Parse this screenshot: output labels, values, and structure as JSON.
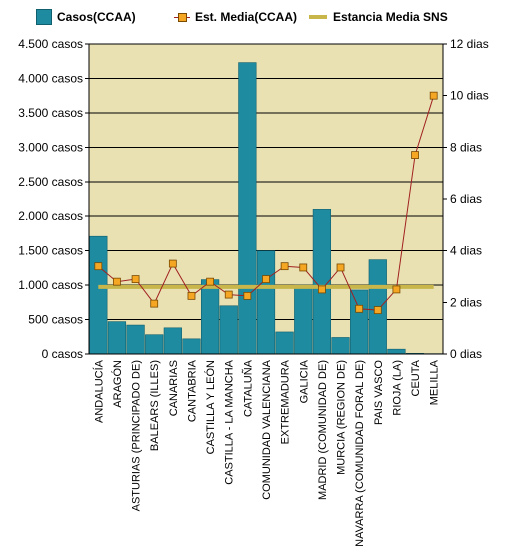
{
  "colors": {
    "plot_bg": "#eae1b3",
    "bar": "#1f8ba0",
    "bar_edge": "#0f5f6e",
    "line": "#a02020",
    "marker": "#f5a623",
    "marker_edge": "#7a4a00",
    "sns": "#c8b64a",
    "grid": "#000000"
  },
  "chart_data": {
    "type": "bar",
    "categories": [
      "ANDALUCÍA",
      "ARAGÓN",
      "ASTURIAS (PRINCIPADO DE)",
      "BALEARS (ILLES)",
      "CANARIAS",
      "CANTABRIA",
      "CASTILLA Y LEÓN",
      "CASTILLA - LA MANCHA",
      "CATALUÑA",
      "COMUNIDAD VALENCIANA",
      "EXTREMADURA",
      "GALICIA",
      "MADRID (COMUNIDAD DE)",
      "MURCIA (REGION DE)",
      "NAVARRA (COMUNIDAD FORAL DE)",
      "PAIS VASCO",
      "RIOJA (LA)",
      "CEUTA",
      "MELILLA"
    ],
    "series": [
      {
        "name": "Casos(CCAA)",
        "kind": "bar",
        "axis": "left",
        "values": [
          1710,
          470,
          420,
          280,
          380,
          220,
          1080,
          700,
          4230,
          1500,
          320,
          1000,
          2100,
          240,
          930,
          1370,
          70,
          10,
          5
        ]
      },
      {
        "name": "Est. Media(CCAA)",
        "kind": "line",
        "axis": "right",
        "values": [
          3.4,
          2.8,
          2.9,
          1.95,
          3.5,
          2.25,
          2.8,
          2.3,
          2.25,
          2.9,
          3.4,
          3.35,
          2.5,
          3.35,
          1.75,
          1.7,
          2.5,
          7.7,
          10.0
        ]
      },
      {
        "name": "Estancia Media SNS",
        "kind": "reference",
        "axis": "right",
        "value": 2.6
      }
    ],
    "y_left": {
      "ticks": [
        "0 casos",
        "500 casos",
        "1.000 casos",
        "1.500 casos",
        "2.000 casos",
        "2.500 casos",
        "3.000 casos",
        "3.500 casos",
        "4.000 casos",
        "4.500 casos"
      ],
      "range": [
        0,
        4500
      ]
    },
    "y_right": {
      "ticks": [
        "0 dias",
        "2 dias",
        "4 dias",
        "6 dias",
        "8 dias",
        "10 dias",
        "12 dias"
      ],
      "range": [
        0,
        12
      ]
    },
    "grid": true,
    "legend_position": "top"
  }
}
